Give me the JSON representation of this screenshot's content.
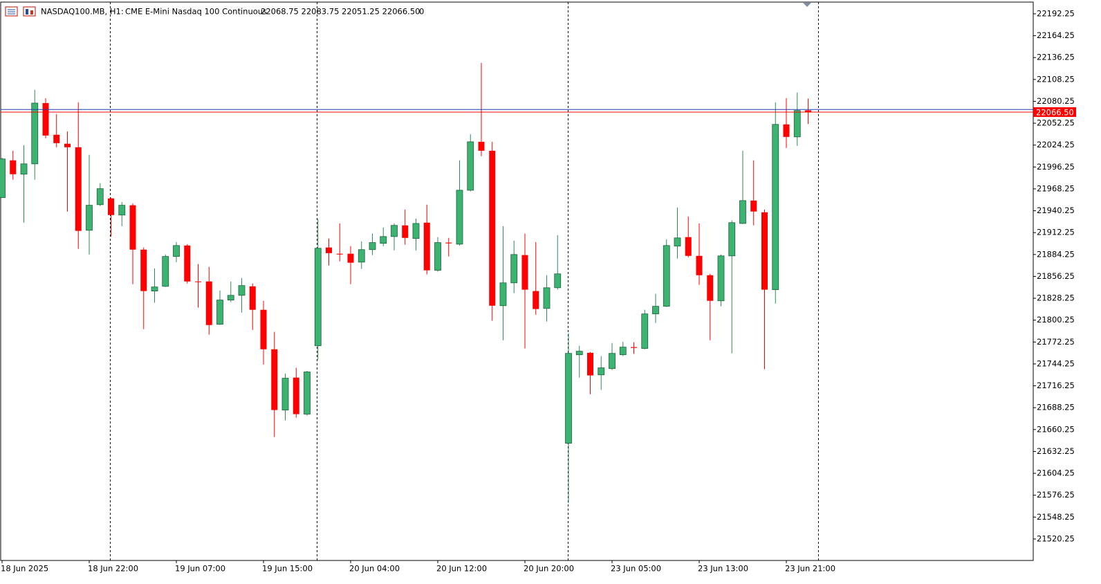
{
  "header": {
    "symbol": "NASDAQ100.MB, H1:",
    "description": "CME E-Mini Nasdaq 100 Continuous",
    "ohlc": "22068.75 22083.75 22051.25 22066.50",
    "volume": "0"
  },
  "chart_data": {
    "type": "candlestick",
    "categories": [
      "18 Jun 2025",
      null,
      null,
      null,
      null,
      null,
      null,
      null,
      "18 Jun 22:00",
      null,
      null,
      null,
      null,
      null,
      null,
      null,
      "19 Jun 07:00",
      null,
      null,
      null,
      null,
      null,
      null,
      null,
      "19 Jun 15:00",
      null,
      null,
      null,
      null,
      null,
      null,
      null,
      "20 Jun 04:00",
      null,
      null,
      null,
      null,
      null,
      null,
      null,
      "20 Jun 12:00",
      null,
      null,
      null,
      null,
      null,
      null,
      null,
      "20 Jun 20:00",
      null,
      null,
      null,
      null,
      null,
      null,
      null,
      "23 Jun 05:00",
      null,
      null,
      null,
      null,
      null,
      null,
      null,
      "23 Jun 13:00",
      null,
      null,
      null,
      null,
      null,
      null,
      null,
      "23 Jun 21:00",
      null,
      null
    ],
    "open": [
      21957,
      22004.75,
      21987,
      22000.25,
      22078,
      22037.5,
      22026,
      22021.5,
      21915.25,
      21948,
      21956,
      21934.75,
      21947.25,
      21890.5,
      21837.5,
      21843.5,
      21881.75,
      21895.75,
      21849.75,
      21849.75,
      21795,
      21826,
      21832,
      21843.5,
      21813.5,
      21763,
      21685.25,
      21726.75,
      21680,
      21767.5,
      21893.25,
      21885.25,
      21885.25,
      21874.5,
      21890.5,
      21898.5,
      21907.25,
      21921.5,
      21904.75,
      21925,
      21864,
      21899.5,
      21897.5,
      21966.5,
      22028.5,
      22017,
      21818.75,
      21848,
      21883.5,
      21837.5,
      21815.25,
      21841.75,
      21642.75,
      21756,
      21758.5,
      21730.25,
      21738.25,
      21756,
      21765.75,
      21764,
      21808.25,
      21818,
      21895,
      21906.5,
      21882.5,
      21857.75,
      21825,
      21882.5,
      21924,
      21953.25,
      21938.25,
      21839.25,
      22050.75,
      22034.75,
      22068.75
    ],
    "high": [
      22008.25,
      22017,
      22024,
      22095,
      22084.25,
      22064,
      22041.75,
      22079,
      22011.75,
      21975.5,
      21957,
      21951.5,
      21949.75,
      21893.25,
      21866.5,
      21884.25,
      21900.25,
      21897.5,
      21872,
      21868.5,
      21838.25,
      21849.75,
      21854.25,
      21847.25,
      21825,
      21785.25,
      21732,
      21739.25,
      21735.5,
      21929.5,
      21904.75,
      21924,
      21895,
      21901,
      21911,
      21918.75,
      21924,
      21941.75,
      21930.25,
      21948,
      21906.5,
      21905.5,
      22004.75,
      22038.25,
      22129.5,
      22028.5,
      21920.5,
      21902,
      21911,
      21900.25,
      21857.75,
      21909,
      21783.5,
      21767.5,
      21759.5,
      21754.25,
      21771,
      21772.75,
      21772,
      21813.5,
      21834,
      21903.75,
      21944.5,
      21933,
      21924,
      21859.5,
      21884.25,
      21927.75,
      22017,
      22004.75,
      21941.75,
      22079,
      22084.25,
      22091.5,
      22083.75
    ],
    "low": [
      21957,
      21980,
      21925,
      21980,
      22033,
      22021.5,
      21939.25,
      21891.5,
      21884.25,
      21946.25,
      21907.25,
      21920.5,
      21846.25,
      21788.75,
      21822.5,
      21842.75,
      21874.5,
      21847.25,
      21816.25,
      21781.75,
      21794,
      21823.25,
      21810,
      21787.75,
      21743.5,
      21650.75,
      21672,
      21675.5,
      21678,
      21749.75,
      21870.25,
      21875.5,
      21846.25,
      21865.75,
      21883.5,
      21895,
      21889.5,
      21896.75,
      21889.5,
      21858.75,
      21862.25,
      21881.75,
      21895.75,
      21965,
      22010,
      21799.5,
      21774.5,
      21834.75,
      21764,
      21807.25,
      21798.5,
      21839.25,
      21566.5,
      21726.75,
      21705.5,
      21711,
      21736.5,
      21754.25,
      21757,
      21763,
      21796.75,
      21817,
      21879,
      21880.75,
      21845.5,
      21774.5,
      21818,
      21757.75,
      21923.25,
      21921.5,
      21737.5,
      21821.5,
      22020.5,
      22023.25,
      22051.25
    ],
    "close": [
      22006.5,
      21987,
      22000.25,
      22078,
      22036.5,
      22026.75,
      22021.5,
      21914.5,
      21947.25,
      21968.5,
      21934.75,
      21947.25,
      21890.5,
      21837.5,
      21842.75,
      21881.75,
      21895.75,
      21849.75,
      21849,
      21794,
      21826,
      21832,
      21844.5,
      21813.5,
      21763,
      21685.25,
      21726,
      21680,
      21734,
      21892.25,
      21886,
      21884.25,
      21873.75,
      21890.5,
      21899.5,
      21907.25,
      21921.5,
      21905.5,
      21924,
      21864,
      21899.5,
      21898.5,
      21966.5,
      22028.5,
      22017,
      21818.75,
      21848,
      21884.25,
      21839.25,
      21814.5,
      21841.75,
      21859.5,
      21757.75,
      21760.5,
      21729.5,
      21739.25,
      21757.75,
      21765.75,
      21764.75,
      21808.25,
      21818,
      21895.75,
      21905.5,
      21882.5,
      21857.75,
      21825,
      21882.5,
      21925,
      21953.25,
      21939.25,
      21839.25,
      22050.75,
      22034.75,
      22068.5,
      22066.5
    ],
    "up_color": "#3cb371",
    "down_color": "#ff0000",
    "ylim": [
      21492.75,
      22207.25
    ],
    "yticks": [
      22192.25,
      22164.25,
      22136.25,
      22108.25,
      22080.25,
      22052.25,
      22024.25,
      21996.25,
      21968.25,
      21940.25,
      21912.25,
      21884.25,
      21856.25,
      21828.25,
      21800.25,
      21772.25,
      21744.25,
      21716.25,
      21688.25,
      21660.25,
      21632.25,
      21604.25,
      21576.25,
      21548.25,
      21520.25
    ],
    "bid": {
      "value": 22066.5,
      "label": "22066.50"
    },
    "ask": 22069.75,
    "bid_color": "#ff0000",
    "ask_color": "#1f3fb4"
  }
}
